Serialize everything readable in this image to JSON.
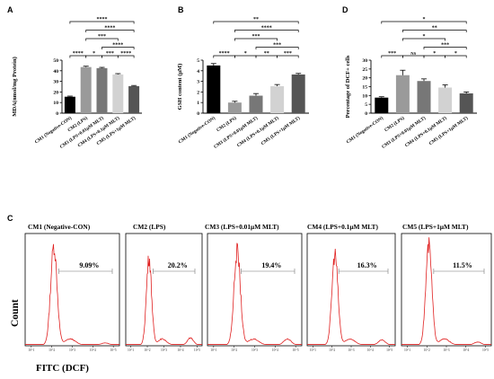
{
  "chart_data": [
    {
      "type": "bar",
      "panel": "A",
      "ylabel": "MDA(nmol/mg Protein)",
      "ylim": [
        0,
        50
      ],
      "yticks": [
        0,
        10,
        20,
        30,
        40,
        50
      ],
      "categories": [
        "CM1 (Negative-CON)",
        "CM2 (LPS)",
        "CM3 (LPS+0.01μM MLT)",
        "CM4 (LPS+0.1μM MLT)",
        "CM5 (LPS+1μM MLT)"
      ],
      "values": [
        15.5,
        43.5,
        42.5,
        36.5,
        25.5
      ],
      "errors": [
        0.6,
        0.8,
        0.7,
        0.8,
        0.6
      ],
      "bar_colors": [
        "#000000",
        "#9a9a9a",
        "#777777",
        "#d2d2d2",
        "#555555"
      ],
      "significance": [
        {
          "from": 0,
          "to": 1,
          "label": "****",
          "level": 0
        },
        {
          "from": 1,
          "to": 2,
          "label": "*",
          "level": 0
        },
        {
          "from": 2,
          "to": 3,
          "label": "***",
          "level": 0
        },
        {
          "from": 3,
          "to": 4,
          "label": "****",
          "level": 0
        },
        {
          "from": 2,
          "to": 4,
          "label": "****",
          "level": 1
        },
        {
          "from": 1,
          "to": 3,
          "label": "***",
          "level": 2
        },
        {
          "from": 1,
          "to": 4,
          "label": "****",
          "level": 3
        },
        {
          "from": 0,
          "to": 4,
          "label": "****",
          "level": 4
        }
      ]
    },
    {
      "type": "bar",
      "panel": "B",
      "ylabel": "GSH content (μM)",
      "ylim": [
        0,
        5
      ],
      "yticks": [
        0,
        1,
        2,
        3,
        4,
        5
      ],
      "categories": [
        "CM1 (Negative-CON)",
        "CM2 (LPS)",
        "CM3 (LPS+0.01μM MLT)",
        "CM4 (LPS+0.1μM MLT)",
        "CM5 (LPS+1μM MLT)"
      ],
      "values": [
        4.5,
        1.0,
        1.65,
        2.55,
        3.65
      ],
      "errors": [
        0.18,
        0.12,
        0.2,
        0.15,
        0.1
      ],
      "bar_colors": [
        "#000000",
        "#9a9a9a",
        "#777777",
        "#d2d2d2",
        "#555555"
      ],
      "significance": [
        {
          "from": 0,
          "to": 1,
          "label": "****",
          "level": 0
        },
        {
          "from": 1,
          "to": 2,
          "label": "*",
          "level": 0
        },
        {
          "from": 2,
          "to": 3,
          "label": "**",
          "level": 0
        },
        {
          "from": 3,
          "to": 4,
          "label": "***",
          "level": 0
        },
        {
          "from": 2,
          "to": 4,
          "label": "***",
          "level": 1
        },
        {
          "from": 1,
          "to": 3,
          "label": "***",
          "level": 2
        },
        {
          "from": 1,
          "to": 4,
          "label": "****",
          "level": 3
        },
        {
          "from": 0,
          "to": 4,
          "label": "**",
          "level": 4
        }
      ]
    },
    {
      "type": "bar",
      "panel": "D",
      "ylabel": "Percentage of DCF+ cells",
      "ylim": [
        0,
        30
      ],
      "yticks": [
        0,
        5,
        10,
        15,
        20,
        25,
        30
      ],
      "categories": [
        "CM1 (Negative-CON)",
        "CM2 (LPS)",
        "CM3 (LPS+0.01μM MLT)",
        "CM4 (LPS+0.1μM MLT)",
        "CM5 (LPS+1μM MLT)"
      ],
      "values": [
        8.8,
        21.5,
        18.2,
        14.5,
        11.2
      ],
      "errors": [
        0.5,
        2.8,
        1.2,
        1.5,
        0.8
      ],
      "bar_colors": [
        "#000000",
        "#9a9a9a",
        "#777777",
        "#d2d2d2",
        "#555555"
      ],
      "significance": [
        {
          "from": 0,
          "to": 1,
          "label": "***",
          "level": 0
        },
        {
          "from": 1,
          "to": 2,
          "label": "NS",
          "level": 0
        },
        {
          "from": 2,
          "to": 3,
          "label": "*",
          "level": 0
        },
        {
          "from": 3,
          "to": 4,
          "label": "*",
          "level": 0
        },
        {
          "from": 2,
          "to": 4,
          "label": "***",
          "level": 1
        },
        {
          "from": 1,
          "to": 3,
          "label": "*",
          "level": 2
        },
        {
          "from": 1,
          "to": 4,
          "label": "**",
          "level": 3
        },
        {
          "from": 0,
          "to": 4,
          "label": "*",
          "level": 4
        }
      ]
    },
    {
      "type": "histogram",
      "panel": "C",
      "xlabel": "FITC (DCF)",
      "ylabel": "Count",
      "x_tick_labels": [
        "10^1",
        "10^2",
        "10^3",
        "10^4",
        "10^5"
      ],
      "line_color": "#e02020",
      "series": [
        {
          "name": "CM1 (Negative-CON)",
          "percent_label": "9.09%",
          "peak_log": 2.1,
          "peak_height": 1.0,
          "tail": 0.02
        },
        {
          "name": "CM2 (LPS)",
          "percent_label": "20.2%",
          "peak_log": 2.1,
          "peak_height": 0.88,
          "tail": 0.07
        },
        {
          "name": "CM3 (LPS+0.01μM MLT)",
          "percent_label": "19.4%",
          "peak_log": 2.15,
          "peak_height": 0.95,
          "tail": 0.06
        },
        {
          "name": "CM4 (LPS+0.1μM MLT)",
          "percent_label": "16.3%",
          "peak_log": 2.15,
          "peak_height": 0.92,
          "tail": 0.05
        },
        {
          "name": "CM5 (LPS+1μM MLT)",
          "percent_label": "11.5%",
          "peak_log": 2.1,
          "peak_height": 1.0,
          "tail": 0.03
        }
      ]
    }
  ]
}
